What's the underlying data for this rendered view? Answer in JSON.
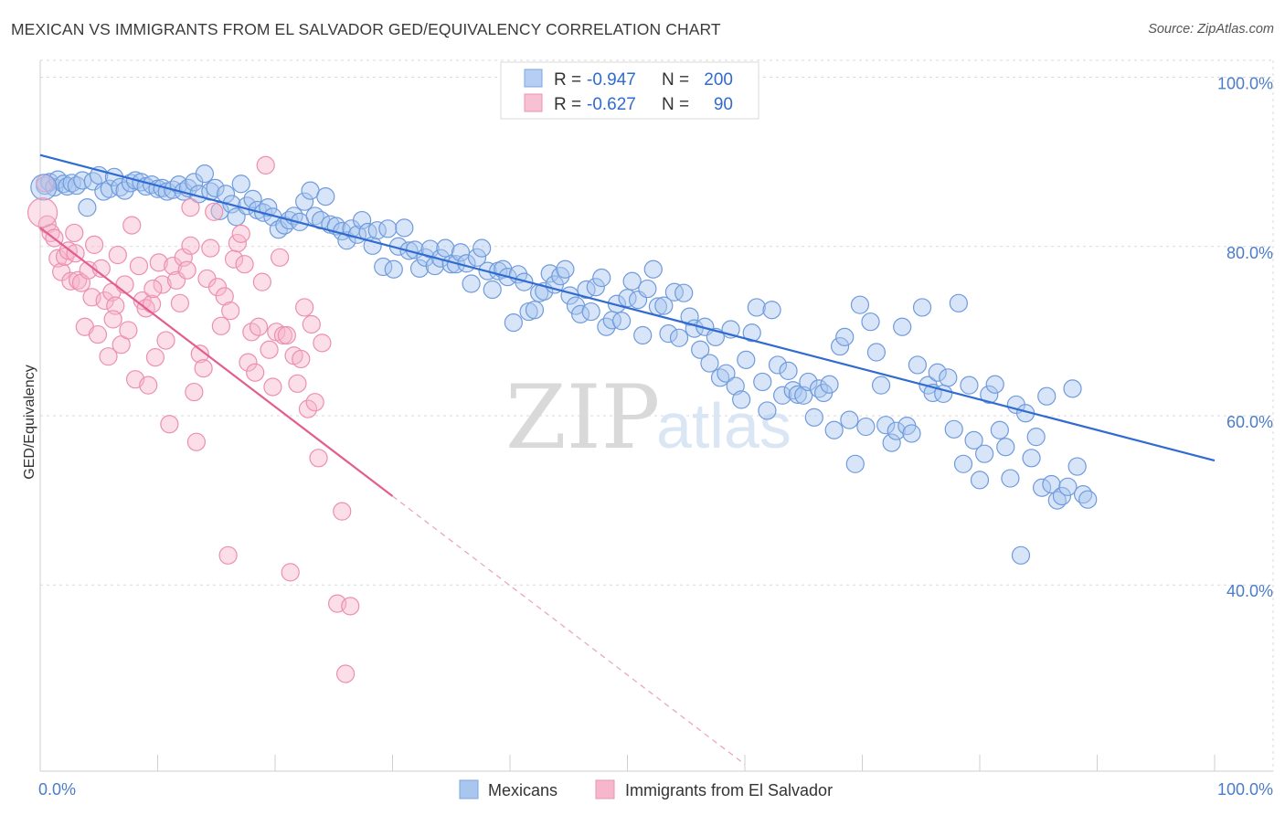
{
  "title": "MEXICAN VS IMMIGRANTS FROM EL SALVADOR GED/EQUIVALENCY CORRELATION CHART",
  "source": "Source: ZipAtlas.com",
  "watermark": {
    "zip": "ZIP",
    "atlas": "atlas"
  },
  "colors": {
    "blue": "#2f6bd0",
    "blue_fill": "#a9c6ef",
    "pink": "#e35d8f",
    "pink_fill": "#f6b6cb",
    "grid": "#d9d9d9",
    "tick_label": "#4a7cc9"
  },
  "legend": {
    "rows": [
      {
        "r_label": "R = ",
        "r_value": "-0.947",
        "n_label": "N = ",
        "n_value": "200"
      },
      {
        "r_label": "R = ",
        "r_value": "-0.627",
        "n_label": "N = ",
        "n_value": "90"
      }
    ]
  },
  "chart_data": {
    "type": "scatter",
    "ylabel": "GED/Equivalency",
    "xlabel": "",
    "xlim": [
      0,
      100
    ],
    "ylim": [
      18,
      102
    ],
    "x_tick_labels": [
      "0.0%",
      "100.0%"
    ],
    "y_ticks": [
      {
        "value": 100,
        "label": "100.0%"
      },
      {
        "value": 80,
        "label": "80.0%"
      },
      {
        "value": 60,
        "label": "60.0%"
      },
      {
        "value": 40,
        "label": "40.0%"
      }
    ],
    "grid": true,
    "legend_position": "top-center",
    "series": [
      {
        "name": "Mexicans",
        "color": "#2f6bd0",
        "r": -0.947,
        "n": 200,
        "trend": {
          "x": [
            0,
            100
          ],
          "y": [
            90.8,
            54.7
          ]
        },
        "points": [
          [
            0.4,
            87.2
          ],
          [
            0.8,
            87.6
          ],
          [
            1.2,
            87.0
          ],
          [
            1.5,
            87.9
          ],
          [
            2.0,
            87.4
          ],
          [
            2.3,
            87.1
          ],
          [
            2.7,
            87.5
          ],
          [
            3.1,
            87.2
          ],
          [
            3.6,
            87.8
          ],
          [
            4.0,
            84.6
          ],
          [
            4.5,
            87.7
          ],
          [
            5.0,
            88.4
          ],
          [
            5.4,
            86.5
          ],
          [
            5.9,
            86.8
          ],
          [
            6.3,
            88.2
          ],
          [
            6.8,
            87.0
          ],
          [
            7.2,
            86.6
          ],
          [
            7.7,
            87.5
          ],
          [
            8.1,
            87.8
          ],
          [
            8.6,
            87.6
          ],
          [
            9.0,
            87.1
          ],
          [
            9.5,
            87.3
          ],
          [
            10.0,
            86.8
          ],
          [
            10.4,
            86.9
          ],
          [
            10.8,
            86.5
          ],
          [
            11.3,
            86.7
          ],
          [
            11.8,
            87.3
          ],
          [
            12.2,
            86.5
          ],
          [
            12.6,
            86.9
          ],
          [
            13.1,
            87.6
          ],
          [
            13.5,
            86.2
          ],
          [
            14.0,
            88.6
          ],
          [
            14.5,
            86.5
          ],
          [
            14.9,
            86.9
          ],
          [
            15.3,
            84.2
          ],
          [
            15.8,
            86.2
          ],
          [
            16.3,
            85.0
          ],
          [
            16.7,
            83.5
          ],
          [
            17.1,
            87.4
          ],
          [
            17.6,
            84.8
          ],
          [
            18.1,
            85.6
          ],
          [
            18.5,
            84.3
          ],
          [
            19.0,
            84.0
          ],
          [
            19.4,
            84.6
          ],
          [
            19.8,
            83.5
          ],
          [
            20.3,
            82.0
          ],
          [
            20.8,
            82.5
          ],
          [
            21.2,
            83.1
          ],
          [
            21.6,
            83.6
          ],
          [
            22.1,
            82.9
          ],
          [
            22.5,
            85.3
          ],
          [
            23.0,
            86.6
          ],
          [
            23.4,
            83.6
          ],
          [
            23.9,
            83.1
          ],
          [
            24.3,
            85.9
          ],
          [
            24.7,
            82.6
          ],
          [
            25.2,
            82.4
          ],
          [
            25.7,
            81.8
          ],
          [
            26.1,
            80.7
          ],
          [
            26.5,
            82.1
          ],
          [
            27.0,
            81.4
          ],
          [
            27.4,
            83.1
          ],
          [
            27.9,
            81.7
          ],
          [
            28.3,
            80.1
          ],
          [
            28.7,
            81.9
          ],
          [
            29.2,
            77.6
          ],
          [
            29.6,
            82.1
          ],
          [
            30.1,
            77.3
          ],
          [
            30.5,
            80.0
          ],
          [
            31.0,
            82.2
          ],
          [
            31.4,
            79.5
          ],
          [
            31.9,
            79.6
          ],
          [
            32.3,
            77.4
          ],
          [
            32.8,
            78.7
          ],
          [
            33.2,
            79.7
          ],
          [
            33.6,
            77.7
          ],
          [
            34.1,
            78.6
          ],
          [
            34.5,
            79.8
          ],
          [
            35.0,
            77.9
          ],
          [
            35.4,
            77.9
          ],
          [
            35.8,
            79.3
          ],
          [
            36.3,
            78.0
          ],
          [
            36.7,
            75.6
          ],
          [
            37.2,
            78.7
          ],
          [
            37.6,
            79.8
          ],
          [
            38.1,
            77.1
          ],
          [
            38.5,
            74.9
          ],
          [
            39.0,
            77.1
          ],
          [
            39.4,
            77.3
          ],
          [
            39.8,
            76.4
          ],
          [
            40.3,
            71.0
          ],
          [
            40.7,
            76.7
          ],
          [
            41.2,
            75.8
          ],
          [
            41.6,
            72.3
          ],
          [
            42.1,
            72.5
          ],
          [
            42.5,
            74.5
          ],
          [
            42.9,
            74.7
          ],
          [
            43.4,
            76.8
          ],
          [
            43.8,
            75.5
          ],
          [
            44.3,
            76.5
          ],
          [
            44.7,
            77.3
          ],
          [
            45.1,
            74.2
          ],
          [
            45.6,
            73.0
          ],
          [
            46.0,
            72.0
          ],
          [
            46.5,
            74.9
          ],
          [
            46.9,
            72.3
          ],
          [
            47.3,
            75.2
          ],
          [
            47.8,
            76.3
          ],
          [
            48.2,
            70.5
          ],
          [
            48.7,
            71.3
          ],
          [
            49.1,
            73.2
          ],
          [
            49.5,
            71.2
          ],
          [
            50.0,
            73.9
          ],
          [
            50.4,
            75.9
          ],
          [
            50.9,
            73.7
          ],
          [
            51.3,
            69.5
          ],
          [
            51.7,
            75.0
          ],
          [
            52.2,
            77.3
          ],
          [
            52.6,
            72.9
          ],
          [
            53.1,
            73.0
          ],
          [
            53.5,
            69.7
          ],
          [
            54.0,
            74.6
          ],
          [
            54.4,
            69.2
          ],
          [
            54.8,
            74.5
          ],
          [
            55.3,
            71.7
          ],
          [
            55.7,
            70.3
          ],
          [
            56.2,
            67.8
          ],
          [
            56.6,
            70.5
          ],
          [
            57.0,
            66.2
          ],
          [
            57.5,
            69.3
          ],
          [
            57.9,
            64.5
          ],
          [
            58.4,
            65.0
          ],
          [
            58.8,
            70.2
          ],
          [
            59.2,
            63.5
          ],
          [
            59.7,
            61.9
          ],
          [
            60.1,
            66.6
          ],
          [
            60.6,
            69.8
          ],
          [
            61.0,
            72.8
          ],
          [
            61.5,
            64.0
          ],
          [
            61.9,
            60.6
          ],
          [
            62.3,
            72.5
          ],
          [
            62.8,
            66.0
          ],
          [
            63.2,
            62.4
          ],
          [
            63.7,
            65.3
          ],
          [
            64.1,
            63.0
          ],
          [
            64.5,
            62.5
          ],
          [
            65.0,
            62.4
          ],
          [
            65.4,
            64.0
          ],
          [
            65.9,
            59.8
          ],
          [
            66.3,
            63.2
          ],
          [
            66.7,
            62.7
          ],
          [
            67.2,
            63.7
          ],
          [
            67.6,
            58.3
          ],
          [
            68.1,
            68.2
          ],
          [
            68.5,
            69.3
          ],
          [
            68.9,
            59.5
          ],
          [
            69.4,
            54.3
          ],
          [
            69.8,
            73.1
          ],
          [
            70.3,
            58.7
          ],
          [
            70.7,
            71.1
          ],
          [
            71.2,
            67.5
          ],
          [
            71.6,
            63.6
          ],
          [
            72.0,
            58.9
          ],
          [
            72.5,
            56.8
          ],
          [
            72.9,
            58.2
          ],
          [
            73.4,
            70.5
          ],
          [
            73.8,
            58.8
          ],
          [
            74.2,
            57.9
          ],
          [
            74.7,
            66.0
          ],
          [
            75.1,
            72.8
          ],
          [
            75.6,
            63.6
          ],
          [
            76.0,
            62.7
          ],
          [
            76.4,
            65.1
          ],
          [
            76.9,
            62.6
          ],
          [
            77.3,
            64.5
          ],
          [
            77.8,
            58.4
          ],
          [
            78.2,
            73.3
          ],
          [
            78.6,
            54.3
          ],
          [
            79.1,
            63.6
          ],
          [
            79.5,
            57.1
          ],
          [
            80.0,
            52.4
          ],
          [
            80.4,
            55.5
          ],
          [
            80.8,
            62.5
          ],
          [
            81.3,
            63.7
          ],
          [
            81.7,
            58.3
          ],
          [
            82.2,
            56.3
          ],
          [
            82.6,
            52.6
          ],
          [
            83.1,
            61.3
          ],
          [
            83.5,
            43.5
          ],
          [
            83.9,
            60.3
          ],
          [
            84.4,
            55.0
          ],
          [
            84.8,
            57.5
          ],
          [
            85.3,
            51.5
          ],
          [
            85.7,
            62.3
          ],
          [
            86.1,
            51.9
          ],
          [
            86.6,
            50.0
          ],
          [
            87.0,
            50.5
          ],
          [
            87.5,
            51.6
          ],
          [
            87.9,
            63.2
          ],
          [
            88.3,
            54.0
          ],
          [
            88.8,
            50.7
          ],
          [
            89.2,
            50.1
          ]
        ]
      },
      {
        "name": "Immigrants from El Salvador",
        "color": "#e35d8f",
        "r": -0.627,
        "n": 90,
        "trend": {
          "x": [
            0,
            30
          ],
          "y": [
            82.2,
            50.5
          ],
          "dashed_to": {
            "x": 60,
            "y": 18.8
          }
        },
        "points": [
          [
            0.4,
            87.5
          ],
          [
            0.6,
            82.6
          ],
          [
            0.9,
            81.6
          ],
          [
            1.2,
            81.0
          ],
          [
            1.5,
            78.6
          ],
          [
            1.8,
            77.0
          ],
          [
            2.1,
            78.8
          ],
          [
            2.4,
            79.5
          ],
          [
            2.6,
            75.9
          ],
          [
            2.9,
            81.6
          ],
          [
            3.2,
            76.0
          ],
          [
            3.5,
            75.7
          ],
          [
            3.8,
            70.5
          ],
          [
            4.1,
            77.2
          ],
          [
            4.4,
            74.0
          ],
          [
            4.6,
            80.2
          ],
          [
            4.9,
            69.6
          ],
          [
            5.2,
            77.4
          ],
          [
            5.5,
            73.6
          ],
          [
            5.8,
            67.0
          ],
          [
            6.1,
            74.6
          ],
          [
            6.4,
            73.0
          ],
          [
            6.6,
            79.0
          ],
          [
            6.9,
            68.4
          ],
          [
            7.2,
            75.5
          ],
          [
            7.5,
            70.1
          ],
          [
            7.8,
            82.5
          ],
          [
            8.1,
            64.3
          ],
          [
            8.4,
            77.7
          ],
          [
            8.7,
            73.6
          ],
          [
            9.0,
            72.7
          ],
          [
            9.2,
            63.6
          ],
          [
            9.5,
            73.2
          ],
          [
            9.8,
            66.9
          ],
          [
            10.1,
            78.1
          ],
          [
            10.4,
            75.5
          ],
          [
            10.7,
            68.9
          ],
          [
            11.0,
            59.0
          ],
          [
            11.3,
            77.7
          ],
          [
            11.6,
            76.0
          ],
          [
            11.9,
            73.3
          ],
          [
            12.2,
            78.7
          ],
          [
            12.5,
            77.2
          ],
          [
            12.8,
            80.1
          ],
          [
            13.1,
            62.8
          ],
          [
            13.3,
            56.9
          ],
          [
            13.6,
            67.3
          ],
          [
            13.9,
            65.6
          ],
          [
            14.2,
            76.2
          ],
          [
            14.5,
            79.8
          ],
          [
            14.8,
            84.1
          ],
          [
            15.1,
            75.2
          ],
          [
            15.4,
            70.6
          ],
          [
            15.7,
            74.1
          ],
          [
            16.0,
            43.5
          ],
          [
            16.2,
            72.4
          ],
          [
            16.5,
            78.5
          ],
          [
            16.8,
            80.4
          ],
          [
            17.1,
            81.5
          ],
          [
            17.4,
            77.9
          ],
          [
            17.7,
            66.3
          ],
          [
            18.0,
            69.9
          ],
          [
            18.3,
            65.1
          ],
          [
            18.6,
            70.5
          ],
          [
            18.9,
            75.8
          ],
          [
            19.2,
            89.6
          ],
          [
            19.5,
            67.8
          ],
          [
            19.8,
            63.4
          ],
          [
            20.1,
            69.9
          ],
          [
            20.4,
            78.7
          ],
          [
            20.7,
            69.5
          ],
          [
            21.0,
            69.5
          ],
          [
            21.3,
            41.5
          ],
          [
            21.6,
            67.1
          ],
          [
            21.9,
            63.8
          ],
          [
            22.2,
            66.7
          ],
          [
            22.5,
            72.8
          ],
          [
            22.8,
            60.8
          ],
          [
            23.1,
            70.8
          ],
          [
            23.4,
            61.6
          ],
          [
            23.7,
            55.0
          ],
          [
            24.0,
            68.6
          ],
          [
            25.3,
            37.8
          ],
          [
            25.7,
            48.7
          ],
          [
            26.0,
            29.5
          ],
          [
            26.4,
            37.5
          ],
          [
            12.8,
            84.6
          ],
          [
            9.6,
            75.0
          ],
          [
            6.2,
            71.4
          ],
          [
            3.0,
            79.2
          ]
        ]
      }
    ]
  },
  "bottom_legend": [
    {
      "label": "Mexicans",
      "color": "#2f6bd0"
    },
    {
      "label": "Immigrants from El Salvador",
      "color": "#e35d8f"
    }
  ]
}
